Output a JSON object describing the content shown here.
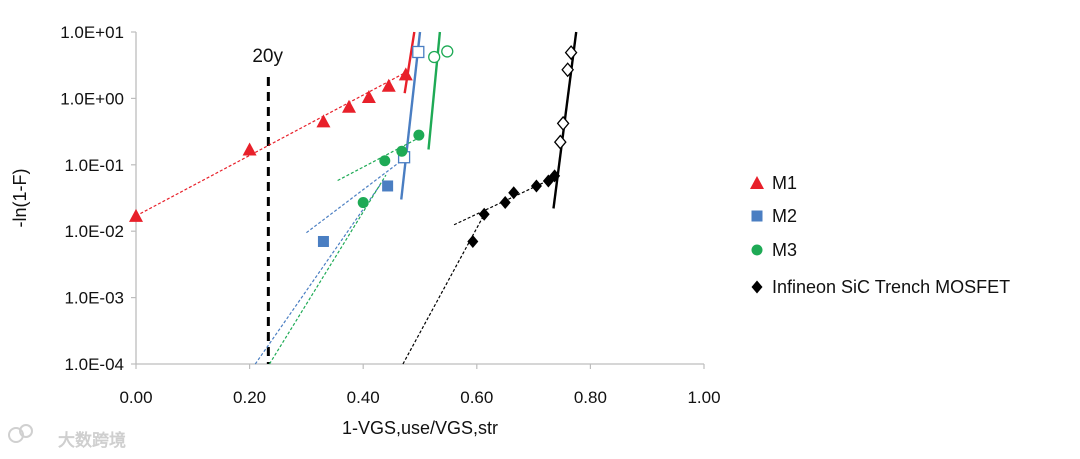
{
  "chart_data": {
    "type": "scatter",
    "title": "",
    "xlabel": "1-VGS,use/VGS,str",
    "ylabel": "-ln(1-F)",
    "xlim": [
      0,
      1
    ],
    "ylim": [
      0.0001,
      10
    ],
    "yscale": "log",
    "x_ticks": [
      0,
      0.2,
      0.4,
      0.6,
      0.8,
      1.0
    ],
    "x_tick_labels": [
      "0.00",
      "0.20",
      "0.40",
      "0.60",
      "0.80",
      "1.00"
    ],
    "y_ticks": [
      10,
      1,
      0.1,
      0.01,
      0.001,
      0.0001
    ],
    "y_tick_labels": [
      "1.0E+01",
      "1.0E+00",
      "1.0E-01",
      "1.0E-02",
      "1.0E-03",
      "1.0E-04"
    ],
    "grid": false,
    "legend_position": "right",
    "annotations": [
      {
        "text": "20y",
        "x": 0.233,
        "y": 5,
        "type": "vertical-dashed-line"
      }
    ],
    "series": [
      {
        "name": "M1",
        "color": "#e8202a",
        "marker": "triangle",
        "points": [
          [
            0.0,
            0.017
          ],
          [
            0.2,
            0.17
          ],
          [
            0.33,
            0.45
          ],
          [
            0.375,
            0.75
          ],
          [
            0.41,
            1.05
          ],
          [
            0.445,
            1.55
          ],
          [
            0.475,
            2.3
          ]
        ],
        "open_points": [],
        "fit_dashed": [
          [
            0.0,
            0.017
          ],
          [
            0.48,
            2.6
          ]
        ],
        "fit_solid": [
          [
            0.473,
            1.2
          ],
          [
            0.49,
            10
          ]
        ]
      },
      {
        "name": "M2",
        "color": "#4a7ec2",
        "marker": "square",
        "points": [
          [
            0.33,
            0.007
          ],
          [
            0.443,
            0.048
          ]
        ],
        "open_points": [
          [
            0.472,
            0.13
          ],
          [
            0.497,
            5.0
          ]
        ],
        "fit_dashed": [
          [
            0.21,
            0.0001
          ],
          [
            0.43,
            0.05
          ]
        ],
        "fit_dashed_2": [
          [
            0.3,
            0.0095
          ],
          [
            0.47,
            0.12
          ]
        ],
        "fit_solid": [
          [
            0.467,
            0.03
          ],
          [
            0.5,
            10
          ]
        ]
      },
      {
        "name": "M3",
        "color": "#1eaa55",
        "marker": "circle",
        "points": [
          [
            0.4,
            0.027
          ],
          [
            0.438,
            0.115
          ],
          [
            0.468,
            0.16
          ],
          [
            0.498,
            0.28
          ]
        ],
        "open_points": [
          [
            0.525,
            4.2
          ],
          [
            0.548,
            5.1
          ]
        ],
        "fit_dashed": [
          [
            0.235,
            0.0001
          ],
          [
            0.44,
            0.07
          ]
        ],
        "fit_dashed_2": [
          [
            0.355,
            0.058
          ],
          [
            0.5,
            0.26
          ]
        ],
        "fit_solid": [
          [
            0.515,
            0.17
          ],
          [
            0.535,
            10
          ]
        ]
      },
      {
        "name": "Infineon SiC Trench MOSFET",
        "color": "#000000",
        "marker": "diamond",
        "points": [
          [
            0.593,
            0.007
          ],
          [
            0.613,
            0.018
          ],
          [
            0.65,
            0.027
          ],
          [
            0.665,
            0.038
          ],
          [
            0.705,
            0.048
          ],
          [
            0.726,
            0.057
          ],
          [
            0.737,
            0.068
          ]
        ],
        "open_points": [
          [
            0.747,
            0.22
          ],
          [
            0.752,
            0.42
          ],
          [
            0.76,
            2.7
          ],
          [
            0.766,
            4.9
          ]
        ],
        "fit_dashed": [
          [
            0.47,
            0.0001
          ],
          [
            0.61,
            0.016
          ]
        ],
        "fit_dashed_2": [
          [
            0.56,
            0.0125
          ],
          [
            0.72,
            0.055
          ]
        ],
        "fit_solid": [
          [
            0.735,
            0.022
          ],
          [
            0.775,
            10
          ]
        ]
      }
    ]
  },
  "watermark": {
    "text": "大数跨境"
  }
}
